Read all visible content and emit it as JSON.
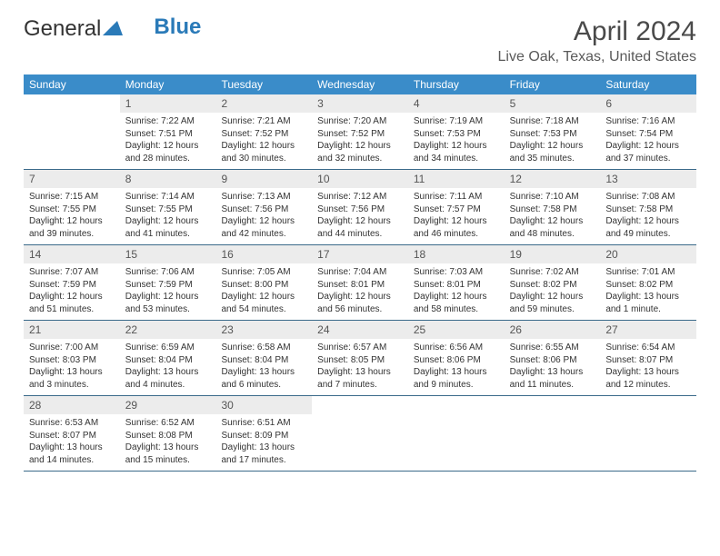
{
  "logo": {
    "text_general": "General",
    "text_blue": "Blue"
  },
  "title": "April 2024",
  "location": "Live Oak, Texas, United States",
  "colors": {
    "header_bg": "#3a8cc9",
    "header_text": "#ffffff",
    "daynum_bg": "#ececec",
    "border": "#3a6a8a",
    "body_text": "#333333"
  },
  "weekdays": [
    "Sunday",
    "Monday",
    "Tuesday",
    "Wednesday",
    "Thursday",
    "Friday",
    "Saturday"
  ],
  "weeks": [
    [
      {
        "n": "",
        "sr": "",
        "ss": "",
        "dl": ""
      },
      {
        "n": "1",
        "sr": "Sunrise: 7:22 AM",
        "ss": "Sunset: 7:51 PM",
        "dl": "Daylight: 12 hours and 28 minutes."
      },
      {
        "n": "2",
        "sr": "Sunrise: 7:21 AM",
        "ss": "Sunset: 7:52 PM",
        "dl": "Daylight: 12 hours and 30 minutes."
      },
      {
        "n": "3",
        "sr": "Sunrise: 7:20 AM",
        "ss": "Sunset: 7:52 PM",
        "dl": "Daylight: 12 hours and 32 minutes."
      },
      {
        "n": "4",
        "sr": "Sunrise: 7:19 AM",
        "ss": "Sunset: 7:53 PM",
        "dl": "Daylight: 12 hours and 34 minutes."
      },
      {
        "n": "5",
        "sr": "Sunrise: 7:18 AM",
        "ss": "Sunset: 7:53 PM",
        "dl": "Daylight: 12 hours and 35 minutes."
      },
      {
        "n": "6",
        "sr": "Sunrise: 7:16 AM",
        "ss": "Sunset: 7:54 PM",
        "dl": "Daylight: 12 hours and 37 minutes."
      }
    ],
    [
      {
        "n": "7",
        "sr": "Sunrise: 7:15 AM",
        "ss": "Sunset: 7:55 PM",
        "dl": "Daylight: 12 hours and 39 minutes."
      },
      {
        "n": "8",
        "sr": "Sunrise: 7:14 AM",
        "ss": "Sunset: 7:55 PM",
        "dl": "Daylight: 12 hours and 41 minutes."
      },
      {
        "n": "9",
        "sr": "Sunrise: 7:13 AM",
        "ss": "Sunset: 7:56 PM",
        "dl": "Daylight: 12 hours and 42 minutes."
      },
      {
        "n": "10",
        "sr": "Sunrise: 7:12 AM",
        "ss": "Sunset: 7:56 PM",
        "dl": "Daylight: 12 hours and 44 minutes."
      },
      {
        "n": "11",
        "sr": "Sunrise: 7:11 AM",
        "ss": "Sunset: 7:57 PM",
        "dl": "Daylight: 12 hours and 46 minutes."
      },
      {
        "n": "12",
        "sr": "Sunrise: 7:10 AM",
        "ss": "Sunset: 7:58 PM",
        "dl": "Daylight: 12 hours and 48 minutes."
      },
      {
        "n": "13",
        "sr": "Sunrise: 7:08 AM",
        "ss": "Sunset: 7:58 PM",
        "dl": "Daylight: 12 hours and 49 minutes."
      }
    ],
    [
      {
        "n": "14",
        "sr": "Sunrise: 7:07 AM",
        "ss": "Sunset: 7:59 PM",
        "dl": "Daylight: 12 hours and 51 minutes."
      },
      {
        "n": "15",
        "sr": "Sunrise: 7:06 AM",
        "ss": "Sunset: 7:59 PM",
        "dl": "Daylight: 12 hours and 53 minutes."
      },
      {
        "n": "16",
        "sr": "Sunrise: 7:05 AM",
        "ss": "Sunset: 8:00 PM",
        "dl": "Daylight: 12 hours and 54 minutes."
      },
      {
        "n": "17",
        "sr": "Sunrise: 7:04 AM",
        "ss": "Sunset: 8:01 PM",
        "dl": "Daylight: 12 hours and 56 minutes."
      },
      {
        "n": "18",
        "sr": "Sunrise: 7:03 AM",
        "ss": "Sunset: 8:01 PM",
        "dl": "Daylight: 12 hours and 58 minutes."
      },
      {
        "n": "19",
        "sr": "Sunrise: 7:02 AM",
        "ss": "Sunset: 8:02 PM",
        "dl": "Daylight: 12 hours and 59 minutes."
      },
      {
        "n": "20",
        "sr": "Sunrise: 7:01 AM",
        "ss": "Sunset: 8:02 PM",
        "dl": "Daylight: 13 hours and 1 minute."
      }
    ],
    [
      {
        "n": "21",
        "sr": "Sunrise: 7:00 AM",
        "ss": "Sunset: 8:03 PM",
        "dl": "Daylight: 13 hours and 3 minutes."
      },
      {
        "n": "22",
        "sr": "Sunrise: 6:59 AM",
        "ss": "Sunset: 8:04 PM",
        "dl": "Daylight: 13 hours and 4 minutes."
      },
      {
        "n": "23",
        "sr": "Sunrise: 6:58 AM",
        "ss": "Sunset: 8:04 PM",
        "dl": "Daylight: 13 hours and 6 minutes."
      },
      {
        "n": "24",
        "sr": "Sunrise: 6:57 AM",
        "ss": "Sunset: 8:05 PM",
        "dl": "Daylight: 13 hours and 7 minutes."
      },
      {
        "n": "25",
        "sr": "Sunrise: 6:56 AM",
        "ss": "Sunset: 8:06 PM",
        "dl": "Daylight: 13 hours and 9 minutes."
      },
      {
        "n": "26",
        "sr": "Sunrise: 6:55 AM",
        "ss": "Sunset: 8:06 PM",
        "dl": "Daylight: 13 hours and 11 minutes."
      },
      {
        "n": "27",
        "sr": "Sunrise: 6:54 AM",
        "ss": "Sunset: 8:07 PM",
        "dl": "Daylight: 13 hours and 12 minutes."
      }
    ],
    [
      {
        "n": "28",
        "sr": "Sunrise: 6:53 AM",
        "ss": "Sunset: 8:07 PM",
        "dl": "Daylight: 13 hours and 14 minutes."
      },
      {
        "n": "29",
        "sr": "Sunrise: 6:52 AM",
        "ss": "Sunset: 8:08 PM",
        "dl": "Daylight: 13 hours and 15 minutes."
      },
      {
        "n": "30",
        "sr": "Sunrise: 6:51 AM",
        "ss": "Sunset: 8:09 PM",
        "dl": "Daylight: 13 hours and 17 minutes."
      },
      {
        "n": "",
        "sr": "",
        "ss": "",
        "dl": ""
      },
      {
        "n": "",
        "sr": "",
        "ss": "",
        "dl": ""
      },
      {
        "n": "",
        "sr": "",
        "ss": "",
        "dl": ""
      },
      {
        "n": "",
        "sr": "",
        "ss": "",
        "dl": ""
      }
    ]
  ]
}
